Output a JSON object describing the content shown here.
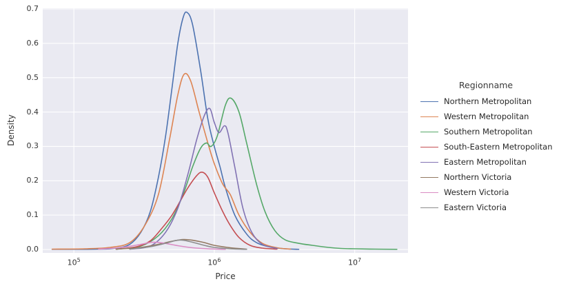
{
  "chart_data": {
    "type": "line",
    "subtype": "kde-density",
    "title": "",
    "xlabel": "Price",
    "ylabel": "Density",
    "xscale": "log",
    "xlim": [
      60000,
      24000000
    ],
    "ylim": [
      0,
      0.7
    ],
    "yticks": [
      0.0,
      0.1,
      0.2,
      0.3,
      0.4,
      0.5,
      0.6,
      0.7
    ],
    "xticks": [
      {
        "base": "10",
        "exp": "5",
        "value": 100000
      },
      {
        "base": "10",
        "exp": "6",
        "value": 1000000
      },
      {
        "base": "10",
        "exp": "7",
        "value": 10000000
      }
    ],
    "grid": true,
    "legend_title": "Regionname",
    "legend_position": "right",
    "colors": {
      "plot_background": "#eaeaf2",
      "grid_line": "#ffffff",
      "text": "#333333"
    },
    "series": [
      {
        "name": "Northern Metropolitan",
        "color": "#4c72b0",
        "points": [
          [
            70000,
            0.0005
          ],
          [
            150000,
            0.001
          ],
          [
            200000,
            0.004
          ],
          [
            250000,
            0.015
          ],
          [
            300000,
            0.05
          ],
          [
            350000,
            0.11
          ],
          [
            400000,
            0.21
          ],
          [
            450000,
            0.33
          ],
          [
            500000,
            0.47
          ],
          [
            550000,
            0.6
          ],
          [
            600000,
            0.675
          ],
          [
            640000,
            0.69
          ],
          [
            700000,
            0.655
          ],
          [
            800000,
            0.52
          ],
          [
            900000,
            0.38
          ],
          [
            1000000,
            0.3
          ],
          [
            1100000,
            0.24
          ],
          [
            1200000,
            0.18
          ],
          [
            1400000,
            0.1
          ],
          [
            1700000,
            0.045
          ],
          [
            2000000,
            0.02
          ],
          [
            2500000,
            0.007
          ],
          [
            3200000,
            0.002
          ],
          [
            4000000,
            0.0005
          ]
        ]
      },
      {
        "name": "Western Metropolitan",
        "color": "#dd8452",
        "points": [
          [
            70000,
            0.001
          ],
          [
            120000,
            0.002
          ],
          [
            180000,
            0.006
          ],
          [
            250000,
            0.02
          ],
          [
            320000,
            0.07
          ],
          [
            400000,
            0.16
          ],
          [
            480000,
            0.32
          ],
          [
            550000,
            0.45
          ],
          [
            610000,
            0.51
          ],
          [
            680000,
            0.49
          ],
          [
            780000,
            0.4
          ],
          [
            900000,
            0.31
          ],
          [
            1000000,
            0.25
          ],
          [
            1150000,
            0.19
          ],
          [
            1300000,
            0.16
          ],
          [
            1500000,
            0.1
          ],
          [
            1800000,
            0.05
          ],
          [
            2200000,
            0.018
          ],
          [
            2800000,
            0.005
          ],
          [
            3500000,
            0.001
          ]
        ]
      },
      {
        "name": "Southern Metropolitan",
        "color": "#55a868",
        "points": [
          [
            200000,
            0.001
          ],
          [
            300000,
            0.01
          ],
          [
            400000,
            0.04
          ],
          [
            500000,
            0.09
          ],
          [
            600000,
            0.16
          ],
          [
            700000,
            0.24
          ],
          [
            800000,
            0.295
          ],
          [
            880000,
            0.31
          ],
          [
            950000,
            0.3
          ],
          [
            1050000,
            0.33
          ],
          [
            1200000,
            0.42
          ],
          [
            1320000,
            0.44
          ],
          [
            1500000,
            0.4
          ],
          [
            1700000,
            0.31
          ],
          [
            2000000,
            0.19
          ],
          [
            2300000,
            0.11
          ],
          [
            2700000,
            0.055
          ],
          [
            3200000,
            0.028
          ],
          [
            4000000,
            0.018
          ],
          [
            5000000,
            0.012
          ],
          [
            6500000,
            0.006
          ],
          [
            8000000,
            0.003
          ],
          [
            10000000,
            0.002
          ],
          [
            14000000,
            0.001
          ],
          [
            20000000,
            0.0005
          ]
        ]
      },
      {
        "name": "South-Eastern Metropolitan",
        "color": "#c44e52",
        "points": [
          [
            200000,
            0.001
          ],
          [
            280000,
            0.008
          ],
          [
            350000,
            0.025
          ],
          [
            420000,
            0.06
          ],
          [
            500000,
            0.1
          ],
          [
            580000,
            0.145
          ],
          [
            650000,
            0.18
          ],
          [
            750000,
            0.215
          ],
          [
            820000,
            0.225
          ],
          [
            900000,
            0.21
          ],
          [
            1000000,
            0.165
          ],
          [
            1150000,
            0.11
          ],
          [
            1300000,
            0.07
          ],
          [
            1500000,
            0.035
          ],
          [
            1800000,
            0.012
          ],
          [
            2200000,
            0.004
          ],
          [
            2800000,
            0.001
          ]
        ]
      },
      {
        "name": "Eastern Metropolitan",
        "color": "#8172b3",
        "points": [
          [
            250000,
            0.001
          ],
          [
            350000,
            0.01
          ],
          [
            450000,
            0.05
          ],
          [
            550000,
            0.12
          ],
          [
            650000,
            0.22
          ],
          [
            750000,
            0.32
          ],
          [
            850000,
            0.39
          ],
          [
            930000,
            0.41
          ],
          [
            1000000,
            0.37
          ],
          [
            1080000,
            0.34
          ],
          [
            1180000,
            0.36
          ],
          [
            1250000,
            0.34
          ],
          [
            1400000,
            0.24
          ],
          [
            1600000,
            0.12
          ],
          [
            1850000,
            0.05
          ],
          [
            2200000,
            0.015
          ],
          [
            2800000,
            0.003
          ]
        ]
      },
      {
        "name": "Northern Victoria",
        "color": "#937860",
        "points": [
          [
            200000,
            0.001
          ],
          [
            300000,
            0.006
          ],
          [
            400000,
            0.015
          ],
          [
            500000,
            0.024
          ],
          [
            600000,
            0.029
          ],
          [
            700000,
            0.027
          ],
          [
            850000,
            0.02
          ],
          [
            1000000,
            0.012
          ],
          [
            1300000,
            0.005
          ],
          [
            1700000,
            0.001
          ]
        ]
      },
      {
        "name": "Western Victoria",
        "color": "#da8bc3",
        "points": [
          [
            150000,
            0.001
          ],
          [
            220000,
            0.006
          ],
          [
            300000,
            0.015
          ],
          [
            360000,
            0.021
          ],
          [
            430000,
            0.019
          ],
          [
            550000,
            0.011
          ],
          [
            700000,
            0.005
          ],
          [
            900000,
            0.002
          ],
          [
            1200000,
            0.0005
          ]
        ]
      },
      {
        "name": "Eastern Victoria",
        "color": "#8c8c8c",
        "points": [
          [
            250000,
            0.001
          ],
          [
            350000,
            0.008
          ],
          [
            450000,
            0.018
          ],
          [
            530000,
            0.026
          ],
          [
            600000,
            0.027
          ],
          [
            700000,
            0.021
          ],
          [
            850000,
            0.012
          ],
          [
            1000000,
            0.006
          ],
          [
            1300000,
            0.002
          ],
          [
            1700000,
            0.0005
          ]
        ]
      }
    ]
  }
}
